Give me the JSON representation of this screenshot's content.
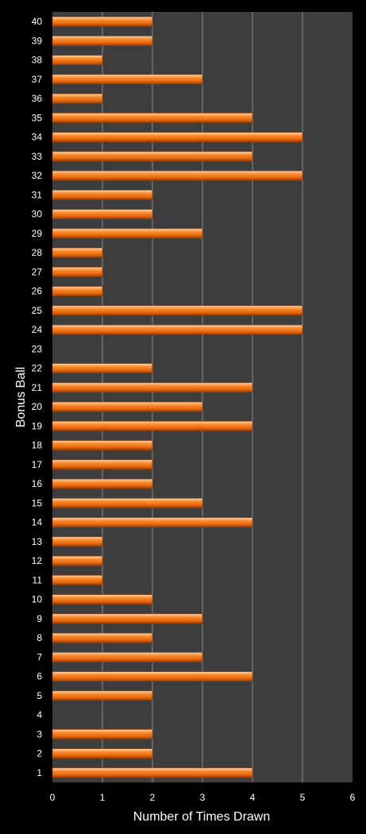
{
  "chart_data": {
    "type": "bar",
    "orientation": "horizontal",
    "xlabel": "Number of Times Drawn",
    "ylabel": "Bonus Ball",
    "xlim": [
      0,
      6
    ],
    "xticks": [
      "0",
      "1",
      "2",
      "3",
      "4",
      "5",
      "6"
    ],
    "grid": "vertical",
    "legend": "none",
    "categories": [
      "1",
      "2",
      "3",
      "4",
      "5",
      "6",
      "7",
      "8",
      "9",
      "10",
      "11",
      "12",
      "13",
      "14",
      "15",
      "16",
      "17",
      "18",
      "19",
      "20",
      "21",
      "22",
      "23",
      "24",
      "25",
      "26",
      "27",
      "28",
      "29",
      "30",
      "31",
      "32",
      "33",
      "34",
      "35",
      "36",
      "37",
      "38",
      "39",
      "40"
    ],
    "values": [
      4,
      2,
      2,
      0,
      2,
      4,
      3,
      2,
      3,
      2,
      1,
      1,
      1,
      4,
      3,
      2,
      2,
      2,
      4,
      3,
      4,
      2,
      0,
      5,
      5,
      1,
      1,
      1,
      3,
      2,
      2,
      5,
      4,
      5,
      4,
      1,
      3,
      1,
      2,
      2
    ],
    "colors": {
      "background": "#000000",
      "plot_area": "#3d3d3d",
      "gridline": "#8a8a8a",
      "bar": "#f47a1f",
      "bar_highlight": "#ffd3a8",
      "bar_shadow": "#9a3f05",
      "text": "#ffffff"
    }
  }
}
